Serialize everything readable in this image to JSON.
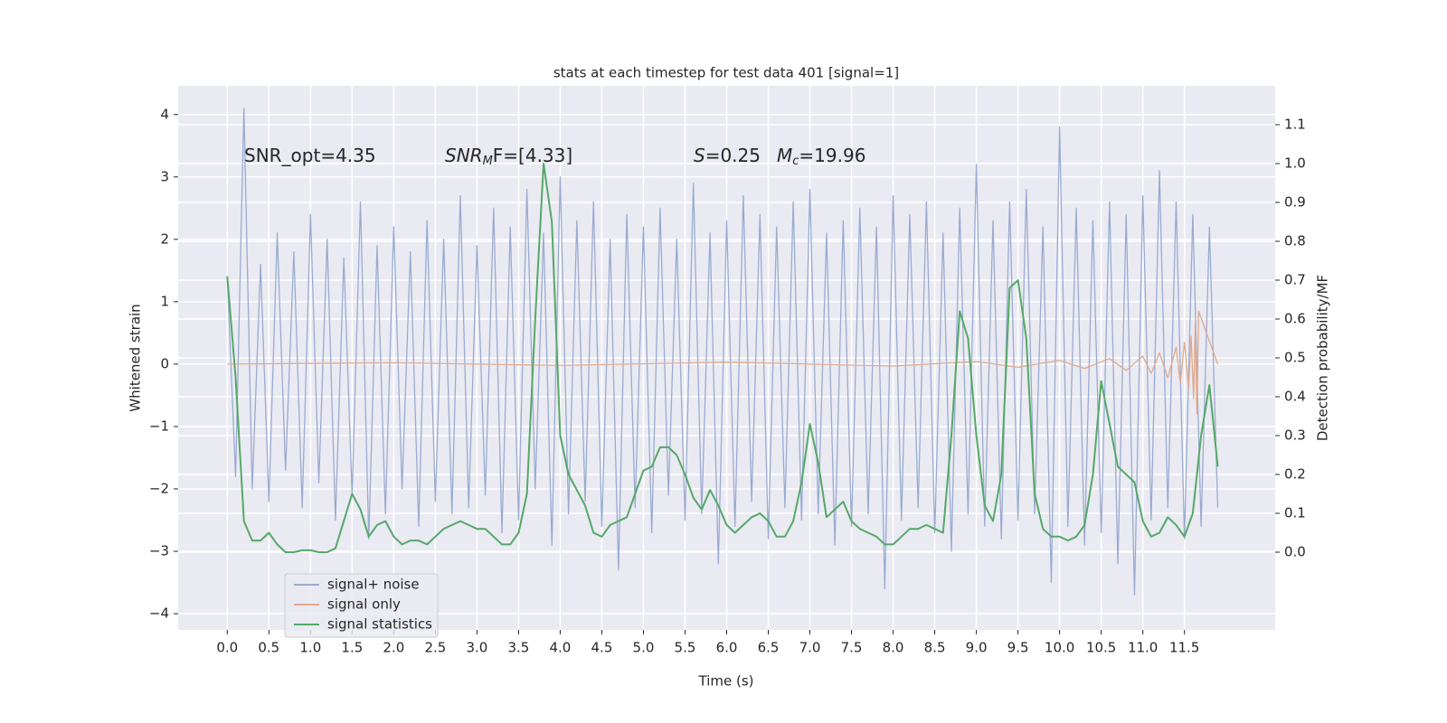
{
  "chart_data": {
    "type": "line",
    "title": "stats at each timestep for test data 401 [signal=1]",
    "xlabel": "Time (s)",
    "ylabel": "Whitened strain",
    "y2label": "Detection probability/MF",
    "annotations": [
      {
        "base": "SNR_opt=4.35"
      },
      {
        "base": "SNR",
        "sub": "M",
        "rest": "F=[4.33]"
      },
      {
        "base": "S",
        "rest": "=0.25"
      },
      {
        "base": "M",
        "sub": "c",
        "rest": "=19.96"
      }
    ],
    "x": [
      0,
      0.1,
      0.2,
      0.3,
      0.4,
      0.5,
      0.6,
      0.7,
      0.8,
      0.9,
      1,
      1.1,
      1.2,
      1.3,
      1.4,
      1.5,
      1.6,
      1.7,
      1.8,
      1.9,
      2,
      2.1,
      2.2,
      2.3,
      2.4,
      2.5,
      2.6,
      2.7,
      2.8,
      2.9,
      3,
      3.1,
      3.2,
      3.3,
      3.4,
      3.5,
      3.6,
      3.7,
      3.8,
      3.9,
      4,
      4.1,
      4.2,
      4.3,
      4.4,
      4.5,
      4.6,
      4.7,
      4.8,
      4.9,
      5,
      5.1,
      5.2,
      5.3,
      5.4,
      5.5,
      5.6,
      5.7,
      5.8,
      5.9,
      6,
      6.1,
      6.2,
      6.3,
      6.4,
      6.5,
      6.6,
      6.7,
      6.8,
      6.9,
      7,
      7.1,
      7.2,
      7.3,
      7.4,
      7.5,
      7.6,
      7.7,
      7.8,
      7.9,
      8,
      8.1,
      8.2,
      8.3,
      8.4,
      8.5,
      8.6,
      8.7,
      8.8,
      8.9,
      9,
      9.1,
      9.2,
      9.3,
      9.4,
      9.5,
      9.6,
      9.7,
      9.8,
      9.9,
      10,
      10.1,
      10.2,
      10.3,
      10.4,
      10.5,
      10.6,
      10.7,
      10.8,
      10.9,
      11,
      11.1,
      11.2,
      11.3,
      11.4,
      11.5,
      11.6,
      11.7,
      11.8,
      11.9
    ],
    "series": [
      {
        "name": "signal+ noise",
        "color": "#9aabd1",
        "values": [
          1.4,
          -1.8,
          4.1,
          -2.0,
          1.6,
          -2.2,
          2.1,
          -1.7,
          1.8,
          -2.3,
          2.4,
          -1.9,
          2.0,
          -2.5,
          1.7,
          -2.1,
          2.6,
          -2.8,
          1.9,
          -2.4,
          2.2,
          -2.0,
          1.8,
          -2.6,
          2.3,
          -2.2,
          2.0,
          -2.4,
          2.7,
          -2.3,
          1.9,
          -2.1,
          2.5,
          -2.7,
          2.2,
          -2.5,
          2.8,
          -2.0,
          2.1,
          -2.9,
          3.0,
          -2.4,
          2.3,
          -2.2,
          2.6,
          -2.6,
          2.0,
          -3.3,
          2.4,
          -2.3,
          2.2,
          -2.7,
          2.5,
          -2.1,
          2.0,
          -2.5,
          2.9,
          -2.4,
          2.1,
          -3.2,
          2.3,
          -2.6,
          2.7,
          -2.2,
          2.4,
          -2.8,
          2.2,
          -2.3,
          2.6,
          -2.5,
          2.8,
          -2.4,
          2.1,
          -2.9,
          2.3,
          -2.6,
          2.5,
          -2.4,
          2.2,
          -3.6,
          2.7,
          -2.5,
          2.4,
          -2.3,
          2.6,
          -2.7,
          2.1,
          -3.0,
          2.5,
          -2.4,
          3.2,
          -2.6,
          2.3,
          -2.8,
          2.6,
          -2.5,
          2.8,
          -2.4,
          2.2,
          -3.5,
          3.8,
          -2.6,
          2.5,
          -2.9,
          2.3,
          -2.7,
          2.6,
          -3.2,
          2.4,
          -3.7,
          2.7,
          -2.5,
          3.1,
          -2.3,
          2.6,
          -2.8,
          2.4,
          -2.6,
          2.2,
          -2.3
        ]
      },
      {
        "name": "signal only",
        "color": "#e0a98c",
        "x": [
          0,
          2,
          4,
          6,
          8,
          9,
          9.5,
          10,
          10.3,
          10.6,
          10.8,
          11.0,
          11.1,
          11.2,
          11.3,
          11.4,
          11.45,
          11.5,
          11.55,
          11.58,
          11.61,
          11.63,
          11.65,
          11.67,
          11.9
        ],
        "values": [
          0,
          0.02,
          -0.02,
          0.03,
          -0.03,
          0.04,
          -0.05,
          0.06,
          -0.07,
          0.09,
          -0.1,
          0.13,
          -0.15,
          0.18,
          -0.22,
          0.27,
          -0.3,
          0.35,
          -0.4,
          0.45,
          -0.55,
          0.65,
          -0.8,
          0.85,
          0
        ]
      },
      {
        "name": "signal statistics",
        "color": "#55a868",
        "axis": "y2",
        "values": [
          0.71,
          0.45,
          0.08,
          0.03,
          0.03,
          0.05,
          0.02,
          0,
          0,
          0.005,
          0.005,
          0,
          0,
          0.01,
          0.08,
          0.15,
          0.11,
          0.04,
          0.07,
          0.08,
          0.04,
          0.02,
          0.03,
          0.03,
          0.02,
          0.04,
          0.06,
          0.07,
          0.08,
          0.07,
          0.06,
          0.06,
          0.04,
          0.02,
          0.02,
          0.05,
          0.15,
          0.6,
          1.0,
          0.85,
          0.3,
          0.2,
          0.16,
          0.12,
          0.05,
          0.04,
          0.07,
          0.08,
          0.09,
          0.15,
          0.21,
          0.22,
          0.27,
          0.27,
          0.25,
          0.2,
          0.14,
          0.11,
          0.16,
          0.12,
          0.07,
          0.05,
          0.07,
          0.09,
          0.1,
          0.08,
          0.04,
          0.04,
          0.08,
          0.18,
          0.33,
          0.23,
          0.09,
          0.11,
          0.13,
          0.08,
          0.06,
          0.05,
          0.04,
          0.02,
          0.02,
          0.04,
          0.06,
          0.06,
          0.07,
          0.06,
          0.05,
          0.3,
          0.62,
          0.55,
          0.3,
          0.12,
          0.08,
          0.2,
          0.68,
          0.7,
          0.55,
          0.15,
          0.06,
          0.04,
          0.04,
          0.03,
          0.04,
          0.07,
          0.2,
          0.44,
          0.33,
          0.22,
          0.2,
          0.18,
          0.08,
          0.04,
          0.05,
          0.09,
          0.07,
          0.04,
          0.1,
          0.3,
          0.43,
          0.22
        ]
      }
    ],
    "xlim": [
      -0.59,
      12.59
    ],
    "xticks": [
      {
        "value": 0,
        "label": "0.0"
      },
      0.5,
      {
        "value": 1,
        "label": "1.0"
      },
      1.5,
      {
        "value": 2,
        "label": "2.0"
      },
      2.5,
      {
        "value": 3,
        "label": "3.0"
      },
      3.5,
      {
        "value": 4,
        "label": "4.0"
      },
      4.5,
      {
        "value": 5,
        "label": "5.0"
      },
      5.5,
      {
        "value": 6,
        "label": "6.0"
      },
      6.5,
      {
        "value": 7,
        "label": "7.0"
      },
      7.5,
      {
        "value": 8,
        "label": "8.0"
      },
      8.5,
      {
        "value": 9,
        "label": "9.0"
      },
      9.5,
      {
        "value": 10,
        "label": "10.0"
      },
      10.5,
      {
        "value": 11,
        "label": "11.0"
      },
      11.5
    ],
    "ylim": [
      -4.26,
      4.46
    ],
    "yticks": [
      {
        "value": -4,
        "label": "−4"
      },
      {
        "value": -3,
        "label": "−3"
      },
      {
        "value": -2,
        "label": "−2"
      },
      {
        "value": -1,
        "label": "−1"
      },
      0,
      1,
      2,
      3,
      4
    ],
    "y2lim": [
      -0.2,
      1.2
    ],
    "y2ticks": [
      {
        "value": 0,
        "label": "0.0"
      },
      0.1,
      0.2,
      0.3,
      0.4,
      0.5,
      0.6,
      0.7,
      0.8,
      0.9,
      {
        "value": 1,
        "label": "1.0"
      },
      1.1
    ],
    "grid": true,
    "legend": "lower left"
  }
}
